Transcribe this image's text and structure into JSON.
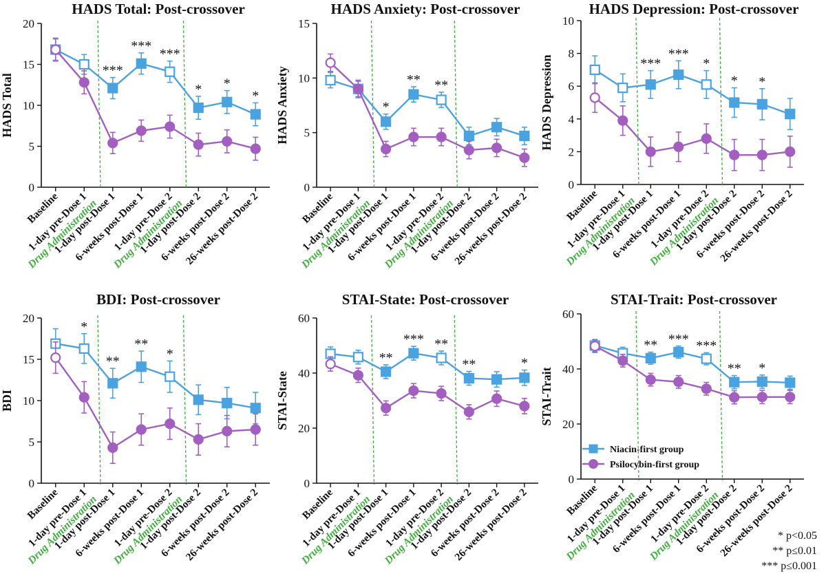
{
  "colors": {
    "niacin": "#4aa3df",
    "psilocybin": "#a25fbf",
    "drug_line": "#3fae3c",
    "axis": "#111111"
  },
  "x_categories": [
    "Baseline",
    "1-day pre-Dose 1",
    "1-day post-Dose 1",
    "6-weeks post-Dose 1",
    "1-day pre-Dose 2",
    "1-day post-Dose 2",
    "6-weeks post-Dose 2",
    "26-weeks post-Dose 2"
  ],
  "drug_label": "Drug Administration",
  "legend": {
    "niacin": "Niacin-first group",
    "psilocybin": "Psilocybin-first group"
  },
  "pvalue_legend": [
    "* p<0.05",
    "** p≤0.01",
    "*** p≤0.001"
  ],
  "chart_data": [
    {
      "type": "line",
      "title": "HADS Total: Post-crossover",
      "ylabel": "HADS Total",
      "ylim": [
        0,
        20
      ],
      "yticks": [
        0,
        5,
        10,
        15,
        20
      ],
      "drug_administration_between": [
        [
          1,
          2
        ],
        [
          4,
          5
        ]
      ],
      "series": [
        {
          "name": "Niacin-first group",
          "values": [
            16.8,
            15.0,
            12.1,
            15.1,
            14.1,
            9.7,
            10.4,
            8.9
          ],
          "errors": [
            1.3,
            1.2,
            1.3,
            1.3,
            1.3,
            1.4,
            1.4,
            1.4
          ]
        },
        {
          "name": "Psilocybin-first group",
          "values": [
            16.8,
            12.8,
            5.4,
            6.9,
            7.4,
            5.2,
            5.6,
            4.7
          ],
          "errors": [
            1.4,
            1.4,
            1.3,
            1.3,
            1.4,
            1.4,
            1.4,
            1.4
          ]
        }
      ],
      "significance": [
        "",
        "",
        "***",
        "***",
        "***",
        "*",
        "*",
        "*"
      ]
    },
    {
      "type": "line",
      "title": "HADS Anxiety: Post-crossover",
      "ylabel": "HADS Anxiety",
      "ylim": [
        0,
        15
      ],
      "yticks": [
        0,
        5,
        10,
        15
      ],
      "drug_administration_between": [
        [
          1,
          2
        ],
        [
          4,
          5
        ]
      ],
      "series": [
        {
          "name": "Niacin-first group",
          "values": [
            9.8,
            9.0,
            6.0,
            8.5,
            8.0,
            4.7,
            5.5,
            4.7
          ],
          "errors": [
            0.7,
            0.7,
            0.7,
            0.7,
            0.7,
            0.8,
            0.8,
            0.8
          ]
        },
        {
          "name": "Psilocybin-first group",
          "values": [
            11.4,
            9.0,
            3.5,
            4.6,
            4.6,
            3.4,
            3.6,
            2.7
          ],
          "errors": [
            0.8,
            0.8,
            0.7,
            0.8,
            0.8,
            0.8,
            0.8,
            0.8
          ]
        }
      ],
      "significance": [
        "",
        "",
        "*",
        "**",
        "**",
        "",
        "",
        ""
      ]
    },
    {
      "type": "line",
      "title": "HADS Depression: Post-crossover",
      "ylabel": "HADS Depression",
      "ylim": [
        0,
        10
      ],
      "yticks": [
        0,
        2,
        4,
        6,
        8,
        10
      ],
      "drug_administration_between": [
        [
          1,
          2
        ],
        [
          4,
          5
        ]
      ],
      "series": [
        {
          "name": "Niacin-first group",
          "values": [
            7.0,
            5.9,
            6.1,
            6.7,
            6.1,
            5.0,
            4.9,
            4.3
          ],
          "errors": [
            0.85,
            0.85,
            0.85,
            0.85,
            0.85,
            0.9,
            0.95,
            0.95
          ]
        },
        {
          "name": "Psilocybin-first group",
          "values": [
            5.3,
            3.9,
            2.0,
            2.3,
            2.8,
            1.8,
            1.8,
            2.0
          ],
          "errors": [
            0.9,
            0.9,
            0.9,
            0.9,
            0.9,
            0.95,
            0.95,
            0.95
          ]
        }
      ],
      "significance": [
        "",
        "",
        "***",
        "***",
        "*",
        "*",
        "*",
        ""
      ]
    },
    {
      "type": "line",
      "title": "BDI: Post-crossover",
      "ylabel": "BDI",
      "ylim": [
        0,
        20
      ],
      "yticks": [
        0,
        5,
        10,
        15,
        20
      ],
      "drug_administration_between": [
        [
          1,
          2
        ],
        [
          4,
          5
        ]
      ],
      "series": [
        {
          "name": "Niacin-first group",
          "values": [
            16.9,
            16.3,
            12.1,
            14.1,
            12.9,
            10.1,
            9.7,
            9.1
          ],
          "errors": [
            1.8,
            1.8,
            1.8,
            1.9,
            1.9,
            1.8,
            1.9,
            1.9
          ]
        },
        {
          "name": "Psilocybin-first group",
          "values": [
            15.2,
            10.4,
            4.3,
            6.5,
            7.2,
            5.3,
            6.3,
            6.5
          ],
          "errors": [
            1.9,
            1.9,
            1.9,
            1.9,
            1.9,
            1.9,
            1.9,
            1.9
          ]
        }
      ],
      "significance": [
        "",
        "*",
        "**",
        "**",
        "*",
        "",
        "",
        ""
      ]
    },
    {
      "type": "line",
      "title": "STAI-State: Post-crossover",
      "ylabel": "STAI-State",
      "ylim": [
        0,
        60
      ],
      "yticks": [
        0,
        20,
        40,
        60
      ],
      "drug_administration_between": [
        [
          1,
          2
        ],
        [
          4,
          5
        ]
      ],
      "series": [
        {
          "name": "Niacin-first group",
          "values": [
            47.0,
            45.8,
            40.5,
            47.2,
            45.5,
            38.1,
            37.7,
            38.3
          ],
          "errors": [
            2.5,
            2.5,
            2.5,
            2.5,
            2.5,
            2.5,
            2.8,
            2.8
          ]
        },
        {
          "name": "Psilocybin-first group",
          "values": [
            43.3,
            39.2,
            27.3,
            33.6,
            32.6,
            25.9,
            30.7,
            28.0
          ],
          "errors": [
            2.6,
            2.6,
            2.6,
            2.6,
            2.6,
            2.6,
            2.8,
            2.8
          ]
        }
      ],
      "significance": [
        "",
        "",
        "**",
        "***",
        "**",
        "**",
        "",
        "*"
      ]
    },
    {
      "type": "line",
      "title": "STAI-Trait: Post-crossover",
      "ylabel": "STAI-Trait",
      "ylim": [
        0,
        60
      ],
      "yticks": [
        0,
        20,
        40,
        60
      ],
      "drug_administration_between": [
        [
          1,
          2
        ],
        [
          4,
          5
        ]
      ],
      "series": [
        {
          "name": "Niacin-first group",
          "values": [
            48.5,
            45.7,
            43.9,
            46.1,
            43.7,
            35.2,
            35.4,
            35.0
          ],
          "errors": [
            2.2,
            2.2,
            2.2,
            2.2,
            2.2,
            2.4,
            2.4,
            2.4
          ]
        },
        {
          "name": "Psilocybin-first group",
          "values": [
            48.3,
            43.0,
            36.1,
            35.3,
            32.8,
            29.7,
            29.8,
            29.8
          ],
          "errors": [
            2.3,
            2.3,
            2.3,
            2.3,
            2.3,
            2.4,
            2.4,
            2.4
          ]
        }
      ],
      "significance": [
        "",
        "",
        "**",
        "***",
        "***",
        "**",
        "*",
        ""
      ]
    }
  ]
}
